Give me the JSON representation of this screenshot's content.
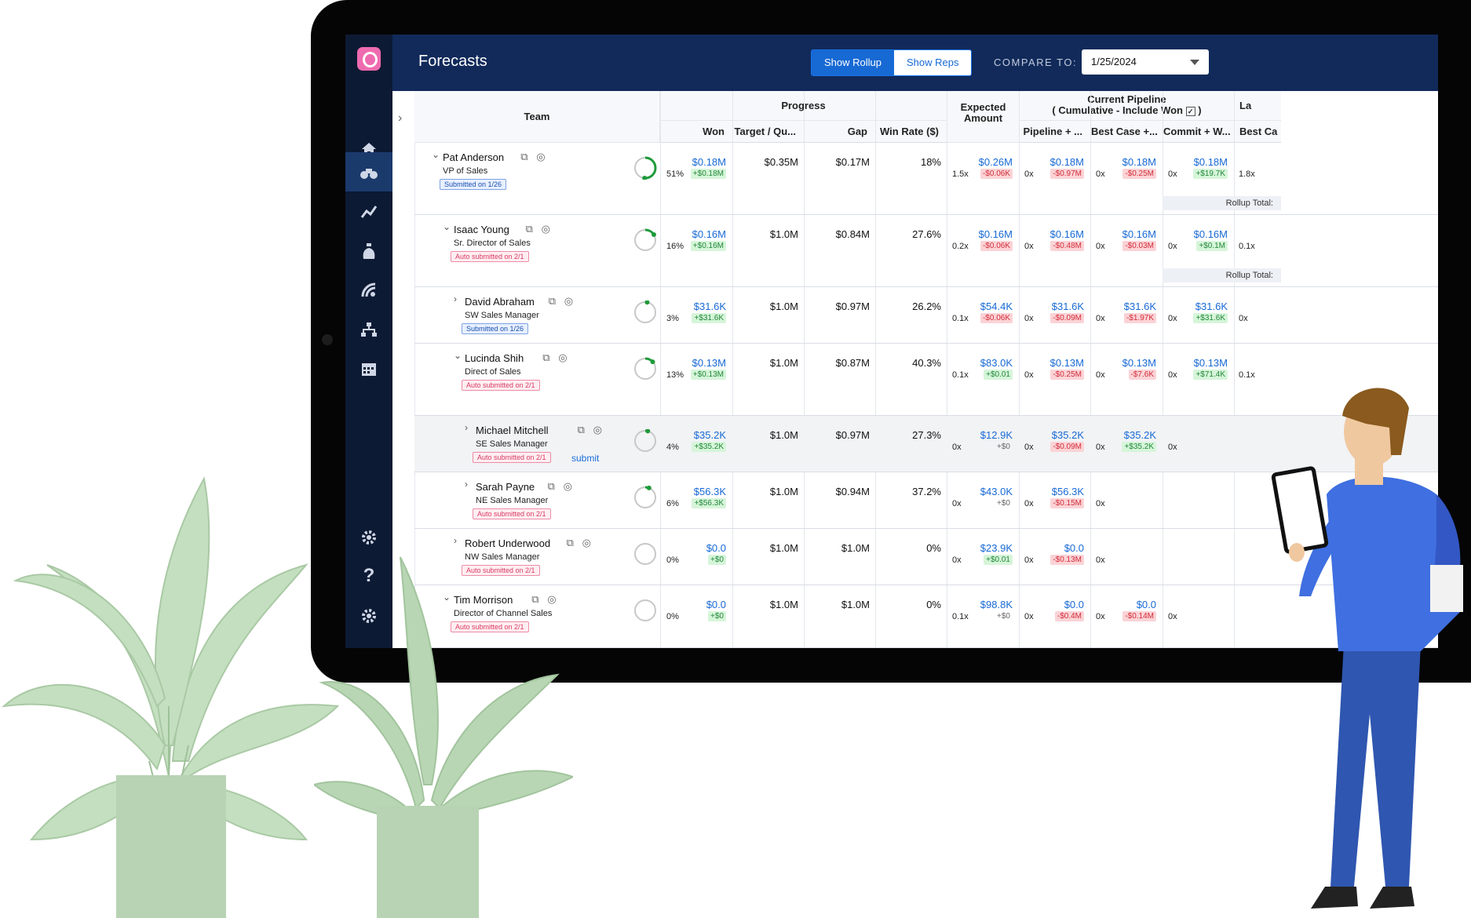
{
  "header": {
    "title": "Forecasts",
    "show_rollup": "Show Rollup",
    "show_reps": "Show Reps",
    "compare_label": "COMPARE TO:",
    "compare_value": "1/25/2024"
  },
  "sidebar": {
    "items": [
      "home-icon",
      "binoculars-icon",
      "trend-icon",
      "money-bag-icon",
      "signal-icon",
      "org-chart-icon",
      "calendar-icon",
      "settings-icon",
      "help-icon",
      "settings-icon"
    ]
  },
  "table": {
    "group_headers": {
      "team": "Team",
      "progress": "Progress",
      "expected": "Expected Amount",
      "pipeline_line1": "Current Pipeline",
      "pipeline_line2": "( Cumulative - Include Won",
      "pipeline_close": ")",
      "last": "La"
    },
    "columns": {
      "won": "Won",
      "target": "Target / Qu...",
      "gap": "Gap",
      "win_rate": "Win Rate ($)",
      "pipeline": "Pipeline + ...",
      "best_case": "Best Case +...",
      "commit": "Commit + W...",
      "best_ca": "Best Ca"
    },
    "rollup_total": "Rollup Total:",
    "submit_link": "submit",
    "rows": [
      {
        "name": "Pat Anderson",
        "title": "VP of Sales",
        "badge": "Submitted on 1/26",
        "badge_type": "blue",
        "chevron": "⌄",
        "progress": 0.51,
        "won_pct": "51%",
        "won": "$0.18M",
        "won_delta": "+$0.18M",
        "target": "$0.35M",
        "gap": "$0.17M",
        "win_rate": "18%",
        "exp_x": "1.5x",
        "expected": "$0.26M",
        "exp_delta": "-$0.06K",
        "pipe_x": "0x",
        "pipeline": "$0.18M",
        "pipe_delta": "-$0.97M",
        "bc_x": "0x",
        "best_case": "$0.18M",
        "bc_delta": "-$0.25M",
        "cm_x": "0x",
        "commit": "$0.18M",
        "cm_delta": "+$19.7K",
        "last_x": "1.8x"
      },
      {
        "name": "Isaac Young",
        "title": "Sr. Director of Sales",
        "badge": "Auto submitted on 2/1",
        "badge_type": "pink",
        "chevron": "⌄",
        "progress": 0.16,
        "won_pct": "16%",
        "won": "$0.16M",
        "won_delta": "+$0.16M",
        "target": "$1.0M",
        "gap": "$0.84M",
        "win_rate": "27.6%",
        "exp_x": "0.2x",
        "expected": "$0.16M",
        "exp_delta": "-$0.06K",
        "pipe_x": "0x",
        "pipeline": "$0.16M",
        "pipe_delta": "-$0.48M",
        "bc_x": "0x",
        "best_case": "$0.16M",
        "bc_delta": "-$0.03M",
        "cm_x": "0x",
        "commit": "$0.16M",
        "cm_delta": "+$0.1M",
        "last_x": "0.1x"
      },
      {
        "name": "David Abraham",
        "title": "SW Sales Manager",
        "badge": "Submitted on 1/26",
        "badge_type": "blue",
        "chevron": "›",
        "progress": 0.03,
        "won_pct": "3%",
        "won": "$31.6K",
        "won_delta": "+$31.6K",
        "target": "$1.0M",
        "gap": "$0.97M",
        "win_rate": "26.2%",
        "exp_x": "0.1x",
        "expected": "$54.4K",
        "exp_delta": "-$0.06K",
        "pipe_x": "0x",
        "pipeline": "$31.6K",
        "pipe_delta": "-$0.09M",
        "bc_x": "0x",
        "best_case": "$31.6K",
        "bc_delta": "-$1.97K",
        "cm_x": "0x",
        "commit": "$31.6K",
        "cm_delta": "+$31.6K",
        "last_x": "0x"
      },
      {
        "name": "Lucinda Shih",
        "title": "Direct of Sales",
        "badge": "Auto submitted on 2/1",
        "badge_type": "pink",
        "chevron": "⌄",
        "progress": 0.13,
        "won_pct": "13%",
        "won": "$0.13M",
        "won_delta": "+$0.13M",
        "target": "$1.0M",
        "gap": "$0.87M",
        "win_rate": "40.3%",
        "exp_x": "0.1x",
        "expected": "$83.0K",
        "exp_delta": "+$0.01",
        "pipe_x": "0x",
        "pipeline": "$0.13M",
        "pipe_delta": "-$0.25M",
        "bc_x": "0x",
        "best_case": "$0.13M",
        "bc_delta": "-$7.6K",
        "cm_x": "0x",
        "commit": "$0.13M",
        "cm_delta": "+$71.4K",
        "last_x": "0.1x"
      },
      {
        "name": "Michael Mitchell",
        "title": "SE Sales Manager",
        "badge": "Auto submitted on 2/1",
        "badge_type": "pink",
        "chevron": "›",
        "progress": 0.04,
        "won_pct": "4%",
        "won": "$35.2K",
        "won_delta": "+$35.2K",
        "target": "$1.0M",
        "gap": "$0.97M",
        "win_rate": "27.3%",
        "exp_x": "0x",
        "expected": "$12.9K",
        "exp_delta": "+$0",
        "pipe_x": "0x",
        "pipeline": "$35.2K",
        "pipe_delta": "-$0.09M",
        "bc_x": "0x",
        "best_case": "$35.2K",
        "bc_delta": "+$35.2K",
        "cm_x": "0x"
      },
      {
        "name": "Sarah Payne",
        "title": "NE Sales Manager",
        "badge": "Auto submitted on 2/1",
        "badge_type": "pink",
        "chevron": "›",
        "progress": 0.06,
        "won_pct": "6%",
        "won": "$56.3K",
        "won_delta": "+$56.3K",
        "target": "$1.0M",
        "gap": "$0.94M",
        "win_rate": "37.2%",
        "exp_x": "0x",
        "expected": "$43.0K",
        "exp_delta": "+$0",
        "pipe_x": "0x",
        "pipeline": "$56.3K",
        "pipe_delta": "-$0.15M",
        "bc_x": "0x"
      },
      {
        "name": "Robert Underwood",
        "title": "NW Sales Manager",
        "badge": "Auto submitted on 2/1",
        "badge_type": "pink",
        "chevron": "›",
        "progress": 0.0,
        "won_pct": "0%",
        "won": "$0.0",
        "won_delta": "+$0",
        "target": "$1.0M",
        "gap": "$1.0M",
        "win_rate": "0%",
        "exp_x": "0x",
        "expected": "$23.9K",
        "exp_delta": "+$0.01",
        "pipe_x": "0x",
        "pipeline": "$0.0",
        "pipe_delta": "-$0.13M",
        "bc_x": "0x"
      },
      {
        "name": "Tim Morrison",
        "title": "Director of Channel Sales",
        "badge": "Auto submitted on 2/1",
        "badge_type": "pink",
        "chevron": "⌄",
        "progress": 0.0,
        "won_pct": "0%",
        "won": "$0.0",
        "won_delta": "+$0",
        "target": "$1.0M",
        "gap": "$1.0M",
        "win_rate": "0%",
        "exp_x": "0.1x",
        "expected": "$98.8K",
        "exp_delta": "+$0",
        "pipe_x": "0x",
        "pipeline": "$0.0",
        "pipe_delta": "-$0.4M",
        "bc_x": "0x",
        "best_case": "$0.0",
        "bc_delta": "-$0.14M",
        "cm_x": "0x"
      }
    ]
  },
  "colors": {
    "navy": "#112a5a",
    "sidebar": "#0d1a34",
    "accent": "#1769d4",
    "plant": "#b9d6b6",
    "person_shirt": "#3f6fe0",
    "person_pants": "#2f56b0"
  }
}
